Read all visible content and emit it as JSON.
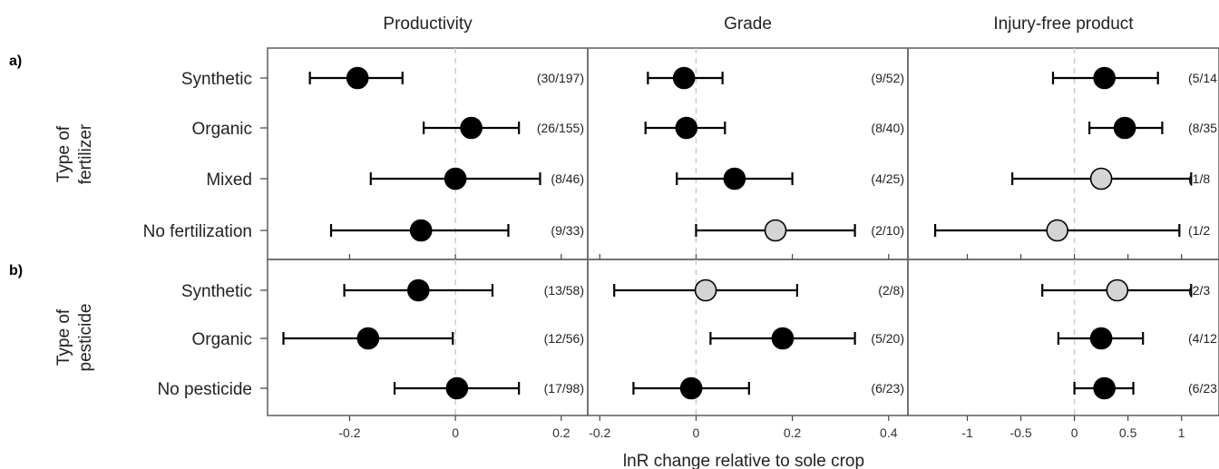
{
  "chart_data": {
    "type": "forest",
    "xlabel": "lnR change relative to sole crop",
    "section_labels": [
      "a)",
      "b)"
    ],
    "group_labels": [
      "Type of fertilizer",
      "Type of pesticide"
    ],
    "rows": [
      {
        "label": "Synthetic",
        "section": 0
      },
      {
        "label": "Organic",
        "section": 0
      },
      {
        "label": "Mixed",
        "section": 0
      },
      {
        "label": "No fertilization",
        "section": 0
      },
      {
        "label": "Synthetic",
        "section": 1
      },
      {
        "label": "Organic",
        "section": 1
      },
      {
        "label": "No pesticide",
        "section": 1
      }
    ],
    "panels": [
      {
        "title": "Productivity",
        "xlim": [
          -0.355,
          0.25
        ],
        "ticks": [
          -0.2,
          0,
          0.2
        ],
        "tick_labels": [
          "-0.2",
          "0",
          "0.2"
        ],
        "points": [
          {
            "est": -0.185,
            "lo": -0.275,
            "hi": -0.1,
            "fill": "black",
            "count": "(30/197)"
          },
          {
            "est": 0.03,
            "lo": -0.06,
            "hi": 0.12,
            "fill": "black",
            "count": "(26/155)"
          },
          {
            "est": 0.0,
            "lo": -0.16,
            "hi": 0.16,
            "fill": "black",
            "count": "(8/46)"
          },
          {
            "est": -0.065,
            "lo": -0.235,
            "hi": 0.1,
            "fill": "black",
            "count": "(9/33)"
          },
          {
            "est": -0.07,
            "lo": -0.21,
            "hi": 0.07,
            "fill": "black",
            "count": "(13/58)"
          },
          {
            "est": -0.165,
            "lo": -0.325,
            "hi": -0.005,
            "fill": "black",
            "count": "(12/56)"
          },
          {
            "est": 0.003,
            "lo": -0.115,
            "hi": 0.12,
            "fill": "black",
            "count": "(17/98)"
          }
        ]
      },
      {
        "title": "Grade",
        "xlim": [
          -0.225,
          0.44
        ],
        "ticks": [
          -0.2,
          0,
          0.2,
          0.4
        ],
        "tick_labels": [
          "-0.2",
          "0",
          "0.2",
          "0.4"
        ],
        "points": [
          {
            "est": -0.025,
            "lo": -0.1,
            "hi": 0.055,
            "fill": "black",
            "count": "(9/52)"
          },
          {
            "est": -0.02,
            "lo": -0.105,
            "hi": 0.06,
            "fill": "black",
            "count": "(8/40)"
          },
          {
            "est": 0.08,
            "lo": -0.04,
            "hi": 0.2,
            "fill": "black",
            "count": "(4/25)"
          },
          {
            "est": 0.165,
            "lo": 0.0,
            "hi": 0.33,
            "fill": "grey",
            "count": "(2/10)"
          },
          {
            "est": 0.02,
            "lo": -0.17,
            "hi": 0.21,
            "fill": "grey",
            "count": "(2/8)"
          },
          {
            "est": 0.18,
            "lo": 0.03,
            "hi": 0.33,
            "fill": "black",
            "count": "(5/20)"
          },
          {
            "est": -0.01,
            "lo": -0.13,
            "hi": 0.11,
            "fill": "black",
            "count": "(6/23)"
          }
        ]
      },
      {
        "title": "Injury-free product",
        "xlim": [
          -1.555,
          1.35
        ],
        "ticks": [
          -1,
          -0.5,
          0,
          0.5,
          1
        ],
        "tick_labels": [
          "-1",
          "-0.5",
          "0",
          "0.5",
          "1"
        ],
        "points": [
          {
            "est": 0.28,
            "lo": -0.2,
            "hi": 0.78,
            "fill": "black",
            "count": "(5/14"
          },
          {
            "est": 0.47,
            "lo": 0.14,
            "hi": 0.82,
            "fill": "black",
            "count": "(8/35"
          },
          {
            "est": 0.25,
            "lo": -0.58,
            "hi": 1.09,
            "fill": "grey",
            "count": "(1/8"
          },
          {
            "est": -0.16,
            "lo": -1.3,
            "hi": 0.98,
            "fill": "grey",
            "count": "(1/2"
          },
          {
            "est": 0.4,
            "lo": -0.3,
            "hi": 1.09,
            "fill": "grey",
            "count": "(2/3"
          },
          {
            "est": 0.25,
            "lo": -0.15,
            "hi": 0.64,
            "fill": "black",
            "count": "(4/12"
          },
          {
            "est": 0.28,
            "lo": 0.0,
            "hi": 0.55,
            "fill": "black",
            "count": "(6/23"
          }
        ]
      }
    ]
  }
}
